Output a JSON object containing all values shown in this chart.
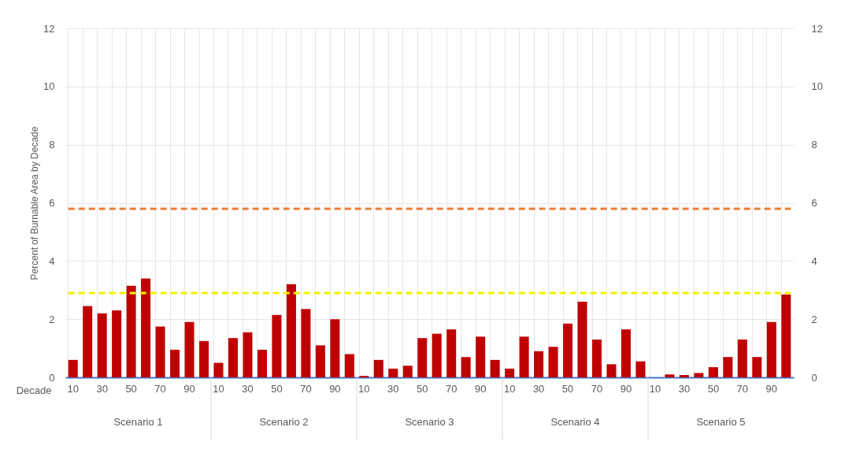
{
  "chart_data": {
    "type": "bar",
    "ylabel": "Percent of Burnable Area by Decade",
    "xlabel": "Decade",
    "categories": [
      "10",
      null,
      "30",
      null,
      "50",
      null,
      "70",
      null,
      "90",
      null,
      "10",
      null,
      "30",
      null,
      "50",
      null,
      "70",
      null,
      "90",
      null,
      "10",
      null,
      "30",
      null,
      "50",
      null,
      "70",
      null,
      "90",
      null,
      "10",
      null,
      "30",
      null,
      "50",
      null,
      "70",
      null,
      "90",
      null,
      "10",
      null,
      "30",
      null,
      "50",
      null,
      "70",
      null,
      "90",
      null
    ],
    "values": [
      0.6,
      2.45,
      2.2,
      2.3,
      3.15,
      3.4,
      1.75,
      0.95,
      1.9,
      1.25,
      0.5,
      1.35,
      1.55,
      0.95,
      2.15,
      3.2,
      2.35,
      1.1,
      2.0,
      0.8,
      0.05,
      0.6,
      0.3,
      0.4,
      1.35,
      1.5,
      1.65,
      0.7,
      1.4,
      0.6,
      0.3,
      1.4,
      0.9,
      1.05,
      1.85,
      2.6,
      1.3,
      0.45,
      1.65,
      0.55,
      0.0,
      0.1,
      0.08,
      0.15,
      0.35,
      0.7,
      1.3,
      0.7,
      1.9,
      2.85
    ],
    "color": "#c00000",
    "ylim": [
      0,
      12
    ],
    "yticks": [
      0,
      2,
      4,
      6,
      8,
      10,
      12
    ],
    "y2lim": [
      0,
      12
    ],
    "y2ticks": [
      0,
      2,
      4,
      6,
      8,
      10,
      12
    ],
    "ref_lines": [
      {
        "axis": "y",
        "value": 5.8,
        "color": "#ed7d31",
        "line_style": "dashed"
      },
      {
        "axis": "y",
        "value": 2.9,
        "color": "#f2f200",
        "line_style": "dashed"
      }
    ],
    "annotations": [
      "Scenario 1",
      "Scenario 2",
      "Scenario 3",
      "Scenario 4",
      "Scenario 5"
    ],
    "grid": true
  }
}
